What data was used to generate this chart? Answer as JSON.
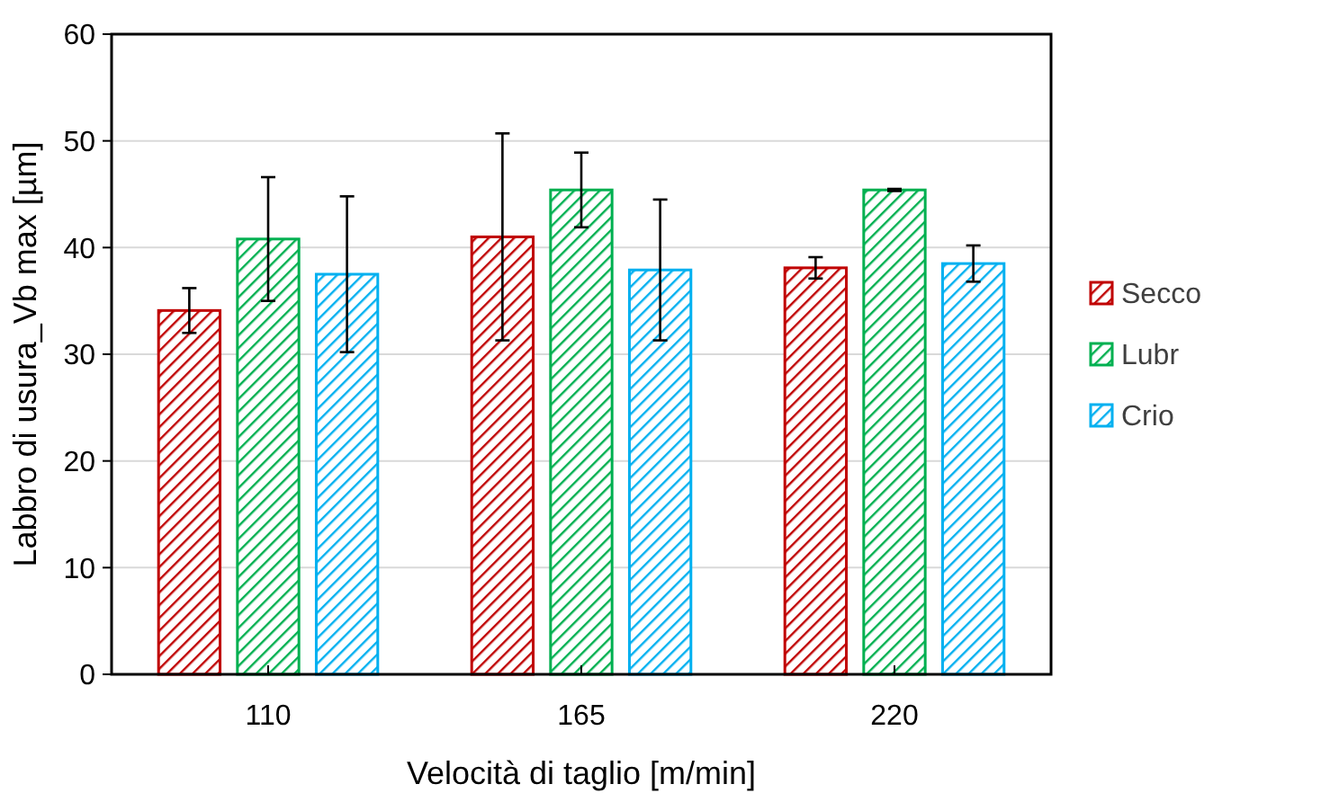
{
  "chart_data": {
    "type": "bar",
    "xlabel": "Velocità di taglio [m/min]",
    "ylabel": "Labbro di usura_Vb max [µm]",
    "categories": [
      "110",
      "165",
      "220"
    ],
    "series": [
      {
        "name": "Secco",
        "color": "#c00000",
        "values": [
          34.1,
          41.0,
          38.1
        ],
        "errors": [
          2.1,
          9.7,
          1.0
        ]
      },
      {
        "name": "Lubr",
        "color": "#00b050",
        "values": [
          40.8,
          45.4,
          45.4
        ],
        "errors": [
          5.8,
          3.5,
          0.1
        ]
      },
      {
        "name": "Crio",
        "color": "#00b0f0",
        "values": [
          37.5,
          37.9,
          38.5
        ],
        "errors": [
          7.3,
          6.6,
          1.7
        ]
      }
    ],
    "ylim": [
      0,
      60
    ],
    "yticks": [
      0,
      10,
      20,
      30,
      40,
      50,
      60
    ],
    "grid": "y",
    "legend": "right"
  }
}
